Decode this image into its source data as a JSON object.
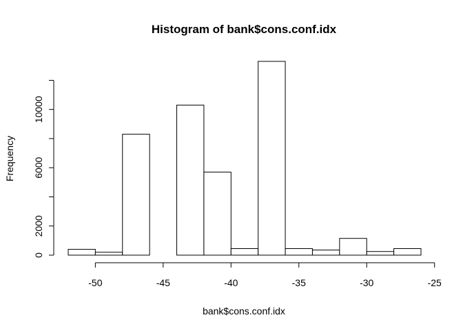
{
  "chart_data": {
    "type": "bar",
    "title": "Histogram of bank$cons.conf.idx",
    "xlabel": "bank$cons.conf.idx",
    "ylabel": "Frequency",
    "bins": [
      {
        "x0": -52,
        "x1": -50,
        "count": 400
      },
      {
        "x0": -50,
        "x1": -48,
        "count": 200
      },
      {
        "x0": -48,
        "x1": -46,
        "count": 8300
      },
      {
        "x0": -46,
        "x1": -44,
        "count": 0
      },
      {
        "x0": -44,
        "x1": -42,
        "count": 10300
      },
      {
        "x0": -42,
        "x1": -40,
        "count": 5700
      },
      {
        "x0": -40,
        "x1": -38,
        "count": 450
      },
      {
        "x0": -38,
        "x1": -36,
        "count": 13300
      },
      {
        "x0": -36,
        "x1": -34,
        "count": 450
      },
      {
        "x0": -34,
        "x1": -32,
        "count": 350
      },
      {
        "x0": -32,
        "x1": -30,
        "count": 1150
      },
      {
        "x0": -30,
        "x1": -28,
        "count": 250
      },
      {
        "x0": -28,
        "x1": -26,
        "count": 450
      }
    ],
    "xlim": [
      -52,
      -26
    ],
    "ylim": [
      0,
      13300
    ],
    "x_ticks": [
      -50,
      -45,
      -40,
      -35,
      -30,
      -25
    ],
    "y_ticks": [
      0,
      2000,
      6000,
      10000
    ],
    "y_axis_max": 12000,
    "grid": false
  }
}
